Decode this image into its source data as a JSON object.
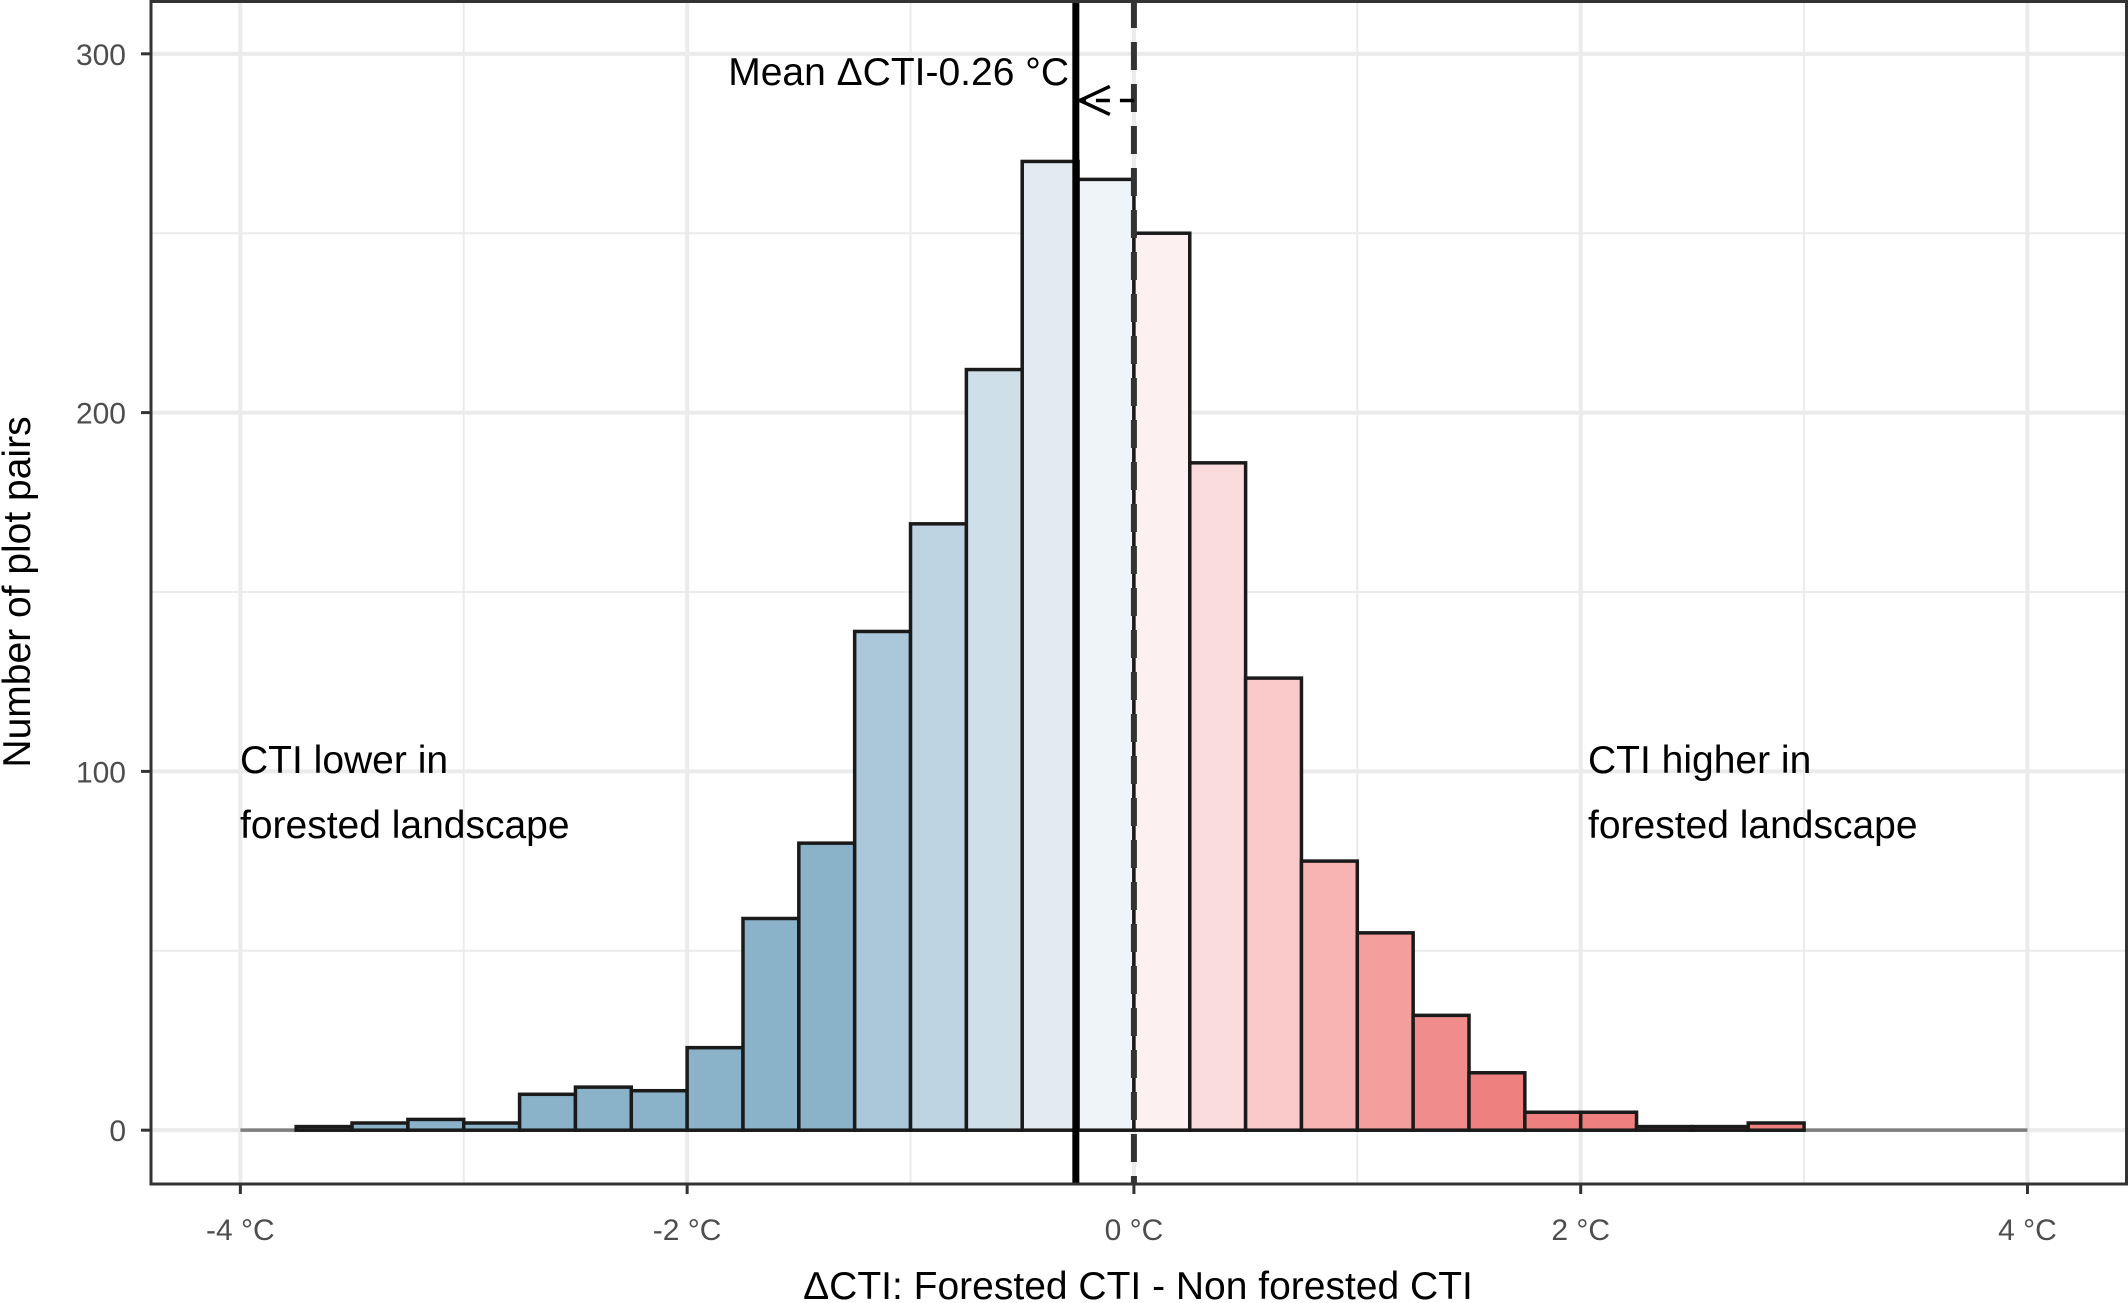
{
  "chart_data": {
    "type": "bar",
    "subtype": "histogram",
    "bin_width": 0.25,
    "bin_starts": [
      -3.75,
      -3.5,
      -3.25,
      -3.0,
      -2.75,
      -2.5,
      -2.25,
      -2.0,
      -1.75,
      -1.5,
      -1.25,
      -1.0,
      -0.75,
      -0.5,
      -0.25,
      0.0,
      0.25,
      0.5,
      0.75,
      1.0,
      1.25,
      1.5,
      1.75,
      2.0,
      2.25,
      2.5,
      2.75
    ],
    "values": [
      1,
      2,
      3,
      2,
      10,
      12,
      11,
      23,
      59,
      80,
      139,
      169,
      212,
      270,
      265,
      250,
      186,
      126,
      75,
      55,
      32,
      16,
      5,
      5,
      1,
      1,
      2
    ],
    "fill_colors": [
      "#8ab3ca",
      "#8ab3ca",
      "#8ab3ca",
      "#8ab3ca",
      "#8ab3ca",
      "#8ab3ca",
      "#8ab3ca",
      "#8ab3ca",
      "#8ab3ca",
      "#8ab3ca",
      "#abc8db",
      "#bed4e3",
      "#cfdfe9",
      "#e2ebf2",
      "#eff4f8",
      "#fdf0f0",
      "#fbdcdc",
      "#fac9c9",
      "#f8b3b3",
      "#f49e9e",
      "#f08c8c",
      "#ef8080",
      "#ef8080",
      "#ef8080",
      "#ef8080",
      "#ef8080",
      "#ef8080"
    ],
    "xlabel": "ΔCTI: Forested CTI  -  Non forested CTI",
    "ylabel": "Number of plot pairs",
    "xlim": [
      -4.4,
      4.45
    ],
    "ylim": [
      -15,
      315
    ],
    "x_ticks": [
      {
        "value": -4,
        "label": "-4 °C"
      },
      {
        "value": -2,
        "label": "-2 °C"
      },
      {
        "value": 0,
        "label": "0 °C"
      },
      {
        "value": 2,
        "label": "2 °C"
      },
      {
        "value": 4,
        "label": "4 °C"
      }
    ],
    "y_ticks": [
      {
        "value": 0,
        "label": "0"
      },
      {
        "value": 100,
        "label": "100"
      },
      {
        "value": 200,
        "label": "200"
      },
      {
        "value": 300,
        "label": "300"
      }
    ],
    "y_minor_gridlines": [
      50,
      150,
      250
    ],
    "x_minor_gridlines": [
      -3,
      -1,
      1,
      3
    ],
    "baseline": {
      "from": -4,
      "to": 4,
      "y": 0
    },
    "reference_lines": [
      {
        "name": "mean",
        "x": -0.26,
        "style": "solid"
      },
      {
        "name": "zero",
        "x": 0,
        "style": "dashed"
      }
    ],
    "arrow": {
      "from_x": 0,
      "to_x": -0.26,
      "y": 287
    },
    "annotations": {
      "mean_label": "Mean ΔCTI-0.26 °C",
      "left_line1": "CTI lower in",
      "left_line2": "forested landscape",
      "right_line1": "CTI higher in",
      "right_line2": "forested landscape"
    },
    "grid": true,
    "theme": "bw",
    "colors": {
      "bar_outline": "#1a1a1a",
      "grid": "#ebebeb",
      "panel_border": "#333333",
      "baseline": "#7f7f7f"
    }
  }
}
